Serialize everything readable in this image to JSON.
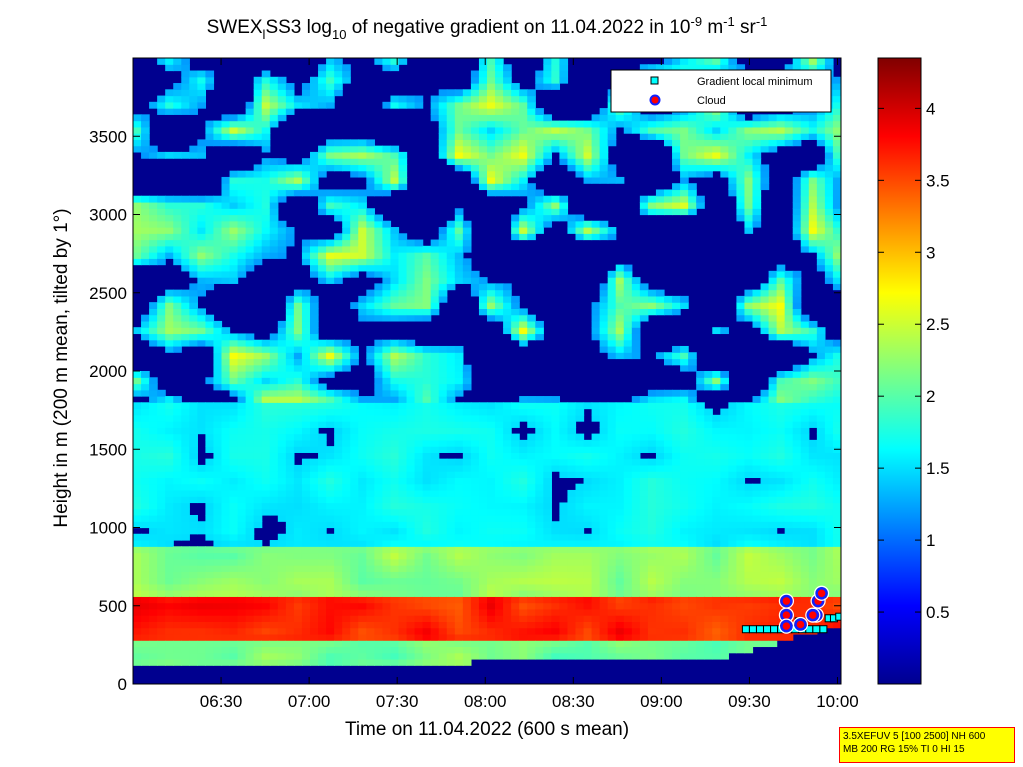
{
  "chart_data": {
    "type": "heatmap",
    "title_parts": {
      "a": "SWEX",
      "a_sub": "l",
      "b": "SS3 log",
      "b_sub": "10",
      "c": " of negative gradient on 11.04.2022 in 10",
      "c_sup": "-9",
      "d": " m",
      "d_sup": "-1",
      "e": " sr",
      "e_sup": "-1"
    },
    "xlabel": "Time on 11.04.2022 (600 s mean)",
    "ylabel": "Height in m (200 m mean, tilted by 1°)",
    "x_ticks": [
      "06:30",
      "07:00",
      "07:30",
      "08:00",
      "08:30",
      "09:00",
      "09:30",
      "10:00"
    ],
    "x_tick_hours": [
      6.5,
      7.0,
      7.5,
      8.0,
      8.5,
      9.0,
      9.5,
      10.0
    ],
    "xlim_hours": [
      6.0,
      10.02
    ],
    "y_ticks": [
      "0",
      "500",
      "1000",
      "1500",
      "2000",
      "2500",
      "3000",
      "3500"
    ],
    "y_tick_values": [
      0,
      500,
      1000,
      1500,
      2000,
      2500,
      3000,
      3500
    ],
    "ylim": [
      0,
      4000
    ],
    "colorbar": {
      "ticks": [
        "0.5",
        "1",
        "1.5",
        "2",
        "2.5",
        "3",
        "3.5",
        "4"
      ],
      "tick_values": [
        0.5,
        1.0,
        1.5,
        2.0,
        2.5,
        3.0,
        3.5,
        4.0
      ],
      "range": [
        0,
        4.35
      ]
    },
    "legend": {
      "position": "top-right",
      "items": [
        {
          "label": "Gradient local minimum",
          "marker": "square",
          "color": "#00ffff"
        },
        {
          "label": "Cloud",
          "marker": "circle",
          "color": "#ff0000"
        }
      ]
    },
    "gradient_minimum_points": [
      {
        "t": 9.48,
        "h": 350
      },
      {
        "t": 9.52,
        "h": 350
      },
      {
        "t": 9.56,
        "h": 350
      },
      {
        "t": 9.6,
        "h": 350
      },
      {
        "t": 9.64,
        "h": 350
      },
      {
        "t": 9.68,
        "h": 350
      },
      {
        "t": 9.72,
        "h": 350
      },
      {
        "t": 9.76,
        "h": 350
      },
      {
        "t": 9.8,
        "h": 350
      },
      {
        "t": 9.84,
        "h": 350
      },
      {
        "t": 9.88,
        "h": 350
      },
      {
        "t": 9.92,
        "h": 350
      },
      {
        "t": 9.95,
        "h": 420
      },
      {
        "t": 9.98,
        "h": 420
      },
      {
        "t": 10.01,
        "h": 430
      },
      {
        "t": 9.7,
        "h": 440
      },
      {
        "t": 9.78,
        "h": 400
      }
    ],
    "cloud_points": [
      {
        "t": 9.71,
        "h": 530
      },
      {
        "t": 9.71,
        "h": 440
      },
      {
        "t": 9.71,
        "h": 370
      },
      {
        "t": 9.79,
        "h": 380
      },
      {
        "t": 9.88,
        "h": 440
      },
      {
        "t": 9.89,
        "h": 530
      },
      {
        "t": 9.91,
        "h": 580
      },
      {
        "t": 9.86,
        "h": 440
      }
    ],
    "band_layers": [
      {
        "h0": 280,
        "h1": 550,
        "value": 3.6
      },
      {
        "h0": 550,
        "h1": 900,
        "value": 2.1
      },
      {
        "h0": 900,
        "h1": 1350,
        "value": 1.6
      },
      {
        "h0": 1350,
        "h1": 1800,
        "value": 1.7
      }
    ]
  },
  "info_box": {
    "line1": "3.5XEFUV 5 [100 2500] NH 600",
    "line2": "MB 200 RG 15% TI 0 HI 15"
  }
}
